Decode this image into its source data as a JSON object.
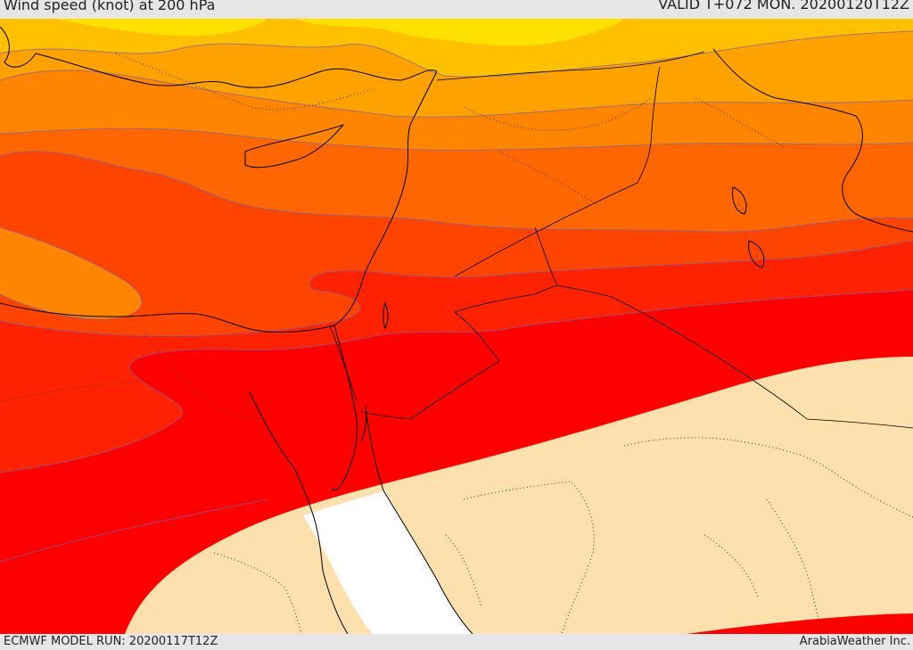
{
  "header": {
    "title": "Wind speed (knot) at 200 hPa",
    "valid": "VALID T+072 MON. 20200120T12Z"
  },
  "footer": {
    "model_run": "ECMWF MODEL RUN: 20200117T12Z",
    "brand": "ArabiaWeather Inc."
  },
  "map": {
    "layer": "wind-speed-shading",
    "colors": {
      "yellow": "#ffe100",
      "gold": "#ffc000",
      "light_orange": "#ffa200",
      "orange": "#ff8400",
      "deep_orange": "#ff6600",
      "red_orange": "#ff4400",
      "scarlet": "#ff2200",
      "red": "#ff0000",
      "low_wind": "#fde0ad",
      "sea_gap": "#ffffff",
      "contour": "#7a5fb0",
      "coastline": "#000000"
    }
  }
}
